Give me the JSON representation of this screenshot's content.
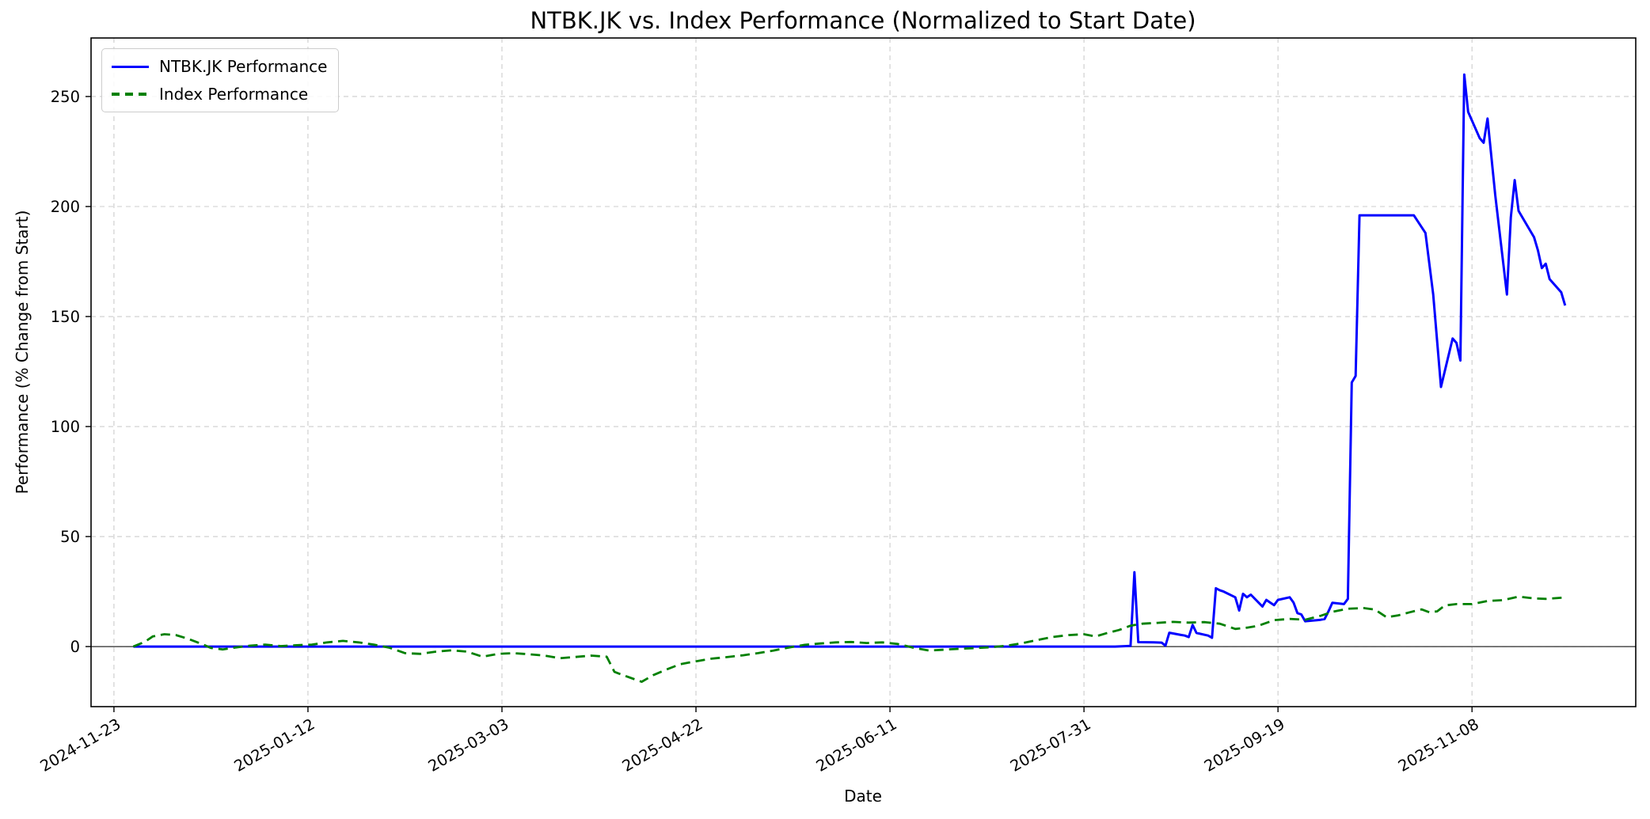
{
  "title": "NTBK.JK vs. Index Performance (Normalized to Start Date)",
  "xlabel": "Date",
  "ylabel": "Performance (% Change from Start)",
  "legend": {
    "items": [
      {
        "label": "NTBK.JK Performance",
        "color": "#0000ff",
        "line_style": "solid"
      },
      {
        "label": "Index Performance",
        "color": "#008000",
        "line_style": "dashed"
      }
    ],
    "position": "upper-left"
  },
  "colors": {
    "ntbk_line": "#0000ff",
    "index_line": "#008000",
    "grid": "#cccccc",
    "spine": "#000000",
    "zero_line": "#2a2a2a",
    "background": "#ffffff"
  },
  "chart_data": {
    "type": "line",
    "title": "NTBK.JK vs. Index Performance (Normalized to Start Date)",
    "xlabel": "Date",
    "ylabel": "Performance (% Change from Start)",
    "grid": true,
    "grid_style": "dashed",
    "zero_line": true,
    "legend_position": "upper-left",
    "x_origin": "2024-11-23",
    "xlim_days": [
      -5.9,
      392.2
    ],
    "ylim": [
      -27.3,
      276.6
    ],
    "x_ticks": [
      "2024-11-23",
      "2025-01-12",
      "2025-03-03",
      "2025-04-22",
      "2025-06-11",
      "2025-07-31",
      "2025-09-19",
      "2025-11-08"
    ],
    "y_ticks": [
      0,
      50,
      100,
      150,
      200,
      250
    ],
    "series": [
      {
        "name": "NTBK.JK Performance",
        "color": "#0000ff",
        "style": "solid",
        "width": 3,
        "points": [
          [
            "2024-11-28",
            0
          ],
          [
            "2024-12-15",
            0
          ],
          [
            "2025-01-15",
            0
          ],
          [
            "2025-02-15",
            0
          ],
          [
            "2025-03-15",
            0
          ],
          [
            "2025-04-15",
            0
          ],
          [
            "2025-05-15",
            0
          ],
          [
            "2025-06-15",
            0
          ],
          [
            "2025-07-15",
            0
          ],
          [
            "2025-08-08",
            0
          ],
          [
            "2025-08-12",
            0.3
          ],
          [
            "2025-08-13",
            33.8
          ],
          [
            "2025-08-14",
            2
          ],
          [
            "2025-08-18",
            1.9
          ],
          [
            "2025-08-20",
            1.8
          ],
          [
            "2025-08-21",
            0.4
          ],
          [
            "2025-08-22",
            6.3
          ],
          [
            "2025-08-25",
            5.3
          ],
          [
            "2025-08-26",
            5
          ],
          [
            "2025-08-27",
            4.3
          ],
          [
            "2025-08-28",
            9.8
          ],
          [
            "2025-08-29",
            6.2
          ],
          [
            "2025-09-01",
            5
          ],
          [
            "2025-09-02",
            4
          ],
          [
            "2025-09-03",
            26.5
          ],
          [
            "2025-09-04",
            25.6
          ],
          [
            "2025-09-05",
            25
          ],
          [
            "2025-09-08",
            22.4
          ],
          [
            "2025-09-09",
            16.4
          ],
          [
            "2025-09-10",
            24
          ],
          [
            "2025-09-11",
            22.4
          ],
          [
            "2025-09-12",
            23.6
          ],
          [
            "2025-09-15",
            18.2
          ],
          [
            "2025-09-16",
            21.2
          ],
          [
            "2025-09-17",
            20
          ],
          [
            "2025-09-18",
            18.8
          ],
          [
            "2025-09-19",
            21.2
          ],
          [
            "2025-09-22",
            22.4
          ],
          [
            "2025-09-23",
            20
          ],
          [
            "2025-09-24",
            15.2
          ],
          [
            "2025-09-25",
            14.6
          ],
          [
            "2025-09-26",
            11.5
          ],
          [
            "2025-09-29",
            12
          ],
          [
            "2025-09-30",
            12.2
          ],
          [
            "2025-10-01",
            12.5
          ],
          [
            "2025-10-02",
            16
          ],
          [
            "2025-10-03",
            19.9
          ],
          [
            "2025-10-06",
            19.3
          ],
          [
            "2025-10-07",
            21.7
          ],
          [
            "2025-10-08",
            120
          ],
          [
            "2025-10-09",
            123
          ],
          [
            "2025-10-10",
            196
          ],
          [
            "2025-10-14",
            196
          ],
          [
            "2025-10-18",
            196
          ],
          [
            "2025-10-21",
            196
          ],
          [
            "2025-10-24",
            196
          ],
          [
            "2025-10-27",
            188
          ],
          [
            "2025-10-29",
            160
          ],
          [
            "2025-10-31",
            118
          ],
          [
            "2025-11-03",
            140
          ],
          [
            "2025-11-04",
            138
          ],
          [
            "2025-11-05",
            130
          ],
          [
            "2025-11-06",
            260
          ],
          [
            "2025-11-07",
            243
          ],
          [
            "2025-11-10",
            231
          ],
          [
            "2025-11-11",
            229
          ],
          [
            "2025-11-12",
            240
          ],
          [
            "2025-11-14",
            205
          ],
          [
            "2025-11-17",
            160
          ],
          [
            "2025-11-18",
            195
          ],
          [
            "2025-11-19",
            212
          ],
          [
            "2025-11-20",
            198
          ],
          [
            "2025-11-21",
            195
          ],
          [
            "2025-11-24",
            186
          ],
          [
            "2025-11-25",
            180
          ],
          [
            "2025-11-26",
            172
          ],
          [
            "2025-11-27",
            174
          ],
          [
            "2025-11-28",
            167
          ],
          [
            "2025-12-01",
            161
          ],
          [
            "2025-12-02",
            155
          ]
        ]
      },
      {
        "name": "Index Performance",
        "color": "#008000",
        "style": "dashed",
        "width": 2.8,
        "points": [
          [
            "2024-11-28",
            0
          ],
          [
            "2024-12-01",
            2.2
          ],
          [
            "2024-12-03",
            4.6
          ],
          [
            "2024-12-06",
            5.6
          ],
          [
            "2024-12-09",
            5.2
          ],
          [
            "2024-12-12",
            3.6
          ],
          [
            "2024-12-15",
            1.6
          ],
          [
            "2024-12-18",
            -0.6
          ],
          [
            "2024-12-21",
            -1.3
          ],
          [
            "2024-12-24",
            -0.5
          ],
          [
            "2024-12-28",
            0.4
          ],
          [
            "2025-01-01",
            0.9
          ],
          [
            "2025-01-05",
            0.2
          ],
          [
            "2025-01-09",
            0.6
          ],
          [
            "2025-01-13",
            0.9
          ],
          [
            "2025-01-17",
            1.9
          ],
          [
            "2025-01-21",
            2.6
          ],
          [
            "2025-01-25",
            1.9
          ],
          [
            "2025-01-29",
            0.9
          ],
          [
            "2025-02-02",
            -0.5
          ],
          [
            "2025-02-06",
            -3
          ],
          [
            "2025-02-10",
            -3.3
          ],
          [
            "2025-02-14",
            -2.3
          ],
          [
            "2025-02-18",
            -1.7
          ],
          [
            "2025-02-22",
            -2.3
          ],
          [
            "2025-02-26",
            -4.6
          ],
          [
            "2025-03-02",
            -3.3
          ],
          [
            "2025-03-06",
            -3
          ],
          [
            "2025-03-10",
            -3.5
          ],
          [
            "2025-03-14",
            -4.1
          ],
          [
            "2025-03-18",
            -5.3
          ],
          [
            "2025-03-22",
            -4.7
          ],
          [
            "2025-03-26",
            -4.1
          ],
          [
            "2025-03-30",
            -4.6
          ],
          [
            "2025-04-01",
            -11.5
          ],
          [
            "2025-04-04",
            -13.5
          ],
          [
            "2025-04-08",
            -16
          ],
          [
            "2025-04-11",
            -13
          ],
          [
            "2025-04-15",
            -10
          ],
          [
            "2025-04-18",
            -8
          ],
          [
            "2025-04-22",
            -6.7
          ],
          [
            "2025-04-26",
            -5.5
          ],
          [
            "2025-04-30",
            -4.8
          ],
          [
            "2025-05-04",
            -4
          ],
          [
            "2025-05-08",
            -3
          ],
          [
            "2025-05-12",
            -1.8
          ],
          [
            "2025-05-16",
            -0.4
          ],
          [
            "2025-05-20",
            0.8
          ],
          [
            "2025-05-24",
            1.4
          ],
          [
            "2025-05-28",
            1.9
          ],
          [
            "2025-06-01",
            2.1
          ],
          [
            "2025-06-05",
            1.6
          ],
          [
            "2025-06-09",
            1.9
          ],
          [
            "2025-06-13",
            1.2
          ],
          [
            "2025-06-17",
            -0.5
          ],
          [
            "2025-06-21",
            -1.8
          ],
          [
            "2025-06-25",
            -1.4
          ],
          [
            "2025-06-29",
            -1
          ],
          [
            "2025-07-03",
            -0.7
          ],
          [
            "2025-07-07",
            -0.3
          ],
          [
            "2025-07-11",
            0.4
          ],
          [
            "2025-07-15",
            1.5
          ],
          [
            "2025-07-19",
            3
          ],
          [
            "2025-07-23",
            4.4
          ],
          [
            "2025-07-27",
            5.2
          ],
          [
            "2025-07-31",
            5.6
          ],
          [
            "2025-08-03",
            4.6
          ],
          [
            "2025-08-06",
            6.2
          ],
          [
            "2025-08-09",
            7.5
          ],
          [
            "2025-08-12",
            9.5
          ],
          [
            "2025-08-15",
            10.4
          ],
          [
            "2025-08-19",
            10.8
          ],
          [
            "2025-08-23",
            11.2
          ],
          [
            "2025-08-27",
            10.9
          ],
          [
            "2025-08-31",
            11.1
          ],
          [
            "2025-09-04",
            10.4
          ],
          [
            "2025-09-08",
            8
          ],
          [
            "2025-09-11",
            8.6
          ],
          [
            "2025-09-14",
            9.5
          ],
          [
            "2025-09-18",
            12
          ],
          [
            "2025-09-22",
            12.6
          ],
          [
            "2025-09-26",
            12.2
          ],
          [
            "2025-09-30",
            14
          ],
          [
            "2025-10-03",
            15.8
          ],
          [
            "2025-10-07",
            17.2
          ],
          [
            "2025-10-11",
            17.5
          ],
          [
            "2025-10-14",
            16.8
          ],
          [
            "2025-10-17",
            13.3
          ],
          [
            "2025-10-20",
            14.2
          ],
          [
            "2025-10-23",
            15.6
          ],
          [
            "2025-10-26",
            16.9
          ],
          [
            "2025-10-28",
            15.6
          ],
          [
            "2025-10-30",
            16
          ],
          [
            "2025-11-01",
            18.7
          ],
          [
            "2025-11-04",
            19.3
          ],
          [
            "2025-11-08",
            19.3
          ],
          [
            "2025-11-12",
            20.7
          ],
          [
            "2025-11-16",
            21.1
          ],
          [
            "2025-11-20",
            22.7
          ],
          [
            "2025-11-24",
            21.9
          ],
          [
            "2025-11-27",
            21.7
          ],
          [
            "2025-12-02",
            22.3
          ]
        ]
      }
    ]
  }
}
